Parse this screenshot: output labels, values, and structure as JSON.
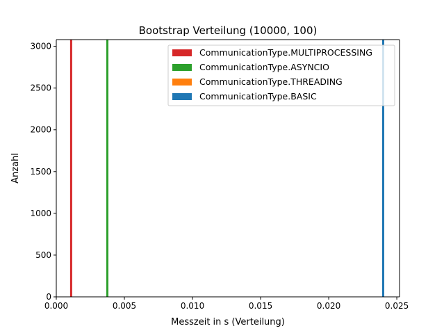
{
  "chart_data": {
    "type": "bar",
    "title": "Bootstrap Verteilung (10000, 100)",
    "xlabel": "Messzeit in s (Verteilung)",
    "ylabel": "Anzahl",
    "xlim": [
      0.0,
      0.0252
    ],
    "ylim": [
      0,
      3080
    ],
    "x_ticks": [
      0.0,
      0.005,
      0.01,
      0.015,
      0.02,
      0.025
    ],
    "x_tick_labels": [
      "0.000",
      "0.005",
      "0.010",
      "0.015",
      "0.020",
      "0.025"
    ],
    "y_ticks": [
      0,
      500,
      1000,
      1500,
      2000,
      2500,
      3000
    ],
    "y_tick_labels": [
      "0",
      "500",
      "1000",
      "1500",
      "2000",
      "2500",
      "3000"
    ],
    "legend_position": "top-right",
    "grid": false,
    "series": [
      {
        "name": "CommunicationType.MULTIPROCESSING",
        "color": "#d62728",
        "x": 0.00109,
        "value": 3080
      },
      {
        "name": "CommunicationType.ASYNCIO",
        "color": "#2ca02c",
        "x": 0.00375,
        "value": 3080
      },
      {
        "name": "CommunicationType.THREADING",
        "color": "#ff7f0e",
        "x": 0.00375,
        "value": 3080
      },
      {
        "name": "CommunicationType.BASIC",
        "color": "#1f77b4",
        "x": 0.024,
        "value": 3080
      }
    ]
  }
}
